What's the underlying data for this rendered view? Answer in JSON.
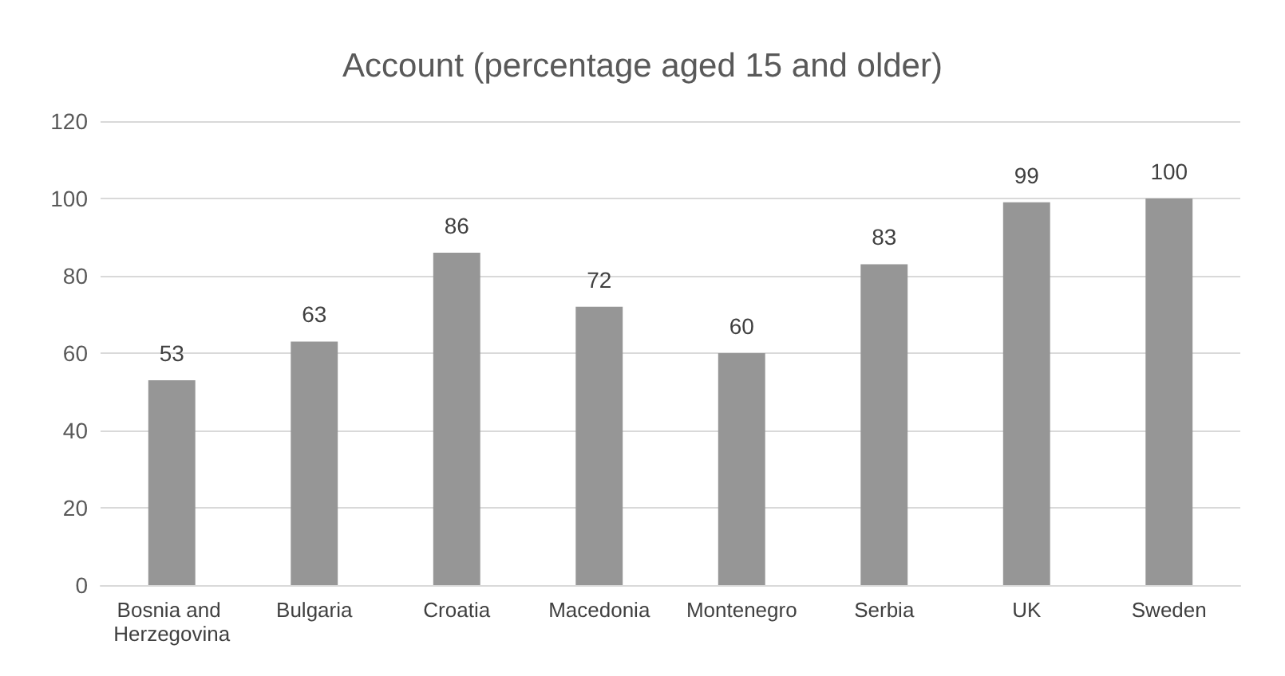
{
  "chart_data": {
    "type": "bar",
    "title": "Account (percentage aged 15 and older)",
    "categories": [
      "Bosnia and Herzegovina",
      "Bulgaria",
      "Croatia",
      "Macedonia",
      "Montenegro",
      "Serbia",
      "UK",
      "Sweden"
    ],
    "values": [
      53,
      63,
      86,
      72,
      60,
      83,
      99,
      100
    ],
    "color": "#969696",
    "ylim": [
      0,
      120
    ],
    "yticks": [
      0,
      20,
      40,
      60,
      80,
      100,
      120
    ],
    "grid": "y",
    "data_labels": true
  }
}
